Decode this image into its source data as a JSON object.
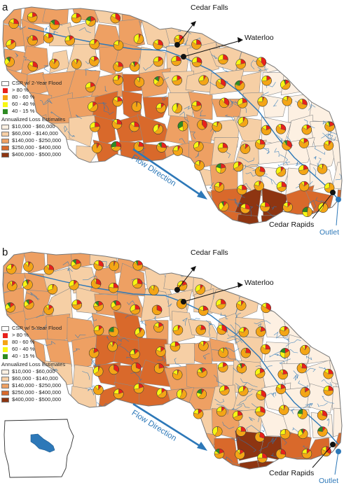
{
  "panels": [
    {
      "letter": "a",
      "csr_title": "CSR w/ 2-Year Flood",
      "csr_classes": [
        {
          "label": "> 80 %",
          "color": "#e8211b"
        },
        {
          "label": "80 - 60 %",
          "color": "#f4a516"
        },
        {
          "label": "60 - 40 %",
          "color": "#f7f712"
        },
        {
          "label": "40 - 15 %",
          "color": "#2e8b23"
        }
      ],
      "loss_title": "Annualized Loss Estimates",
      "loss_classes": [
        {
          "label": "$10,000 - $60,000",
          "color": "#fdf0e2"
        },
        {
          "label": "$60,000 - $140,000",
          "color": "#f6cfa5"
        },
        {
          "label": "$140,000 - $250,000",
          "color": "#eea063"
        },
        {
          "label": "$250,000 - $400,000",
          "color": "#d9692b"
        },
        {
          "label": "$400,000 - $500,000",
          "color": "#8e3511"
        }
      ],
      "cities": {
        "cedar_falls": "Cedar Falls",
        "waterloo": "Waterloo",
        "cedar_rapids": "Cedar Rapids"
      },
      "flow_direction": "Flow Direction",
      "outlet": "Outlet"
    },
    {
      "letter": "b",
      "csr_title": "CSR w/ 5-Year Flood",
      "csr_classes": [
        {
          "label": "> 80 %",
          "color": "#e8211b"
        },
        {
          "label": "80 - 60 %",
          "color": "#f4a516"
        },
        {
          "label": "60 - 40 %",
          "color": "#f7f712"
        },
        {
          "label": "40 - 15 %",
          "color": "#2e8b23"
        }
      ],
      "loss_title": "Annualized Loss Estimates",
      "loss_classes": [
        {
          "label": "$10,000 - $60,000",
          "color": "#fdf0e2"
        },
        {
          "label": "$60,000 - $140,000",
          "color": "#f6cfa5"
        },
        {
          "label": "$140,000 - $250,000",
          "color": "#eea063"
        },
        {
          "label": "$250,000 - $400,000",
          "color": "#d9692b"
        },
        {
          "label": "$400,000 - $500,000",
          "color": "#8e3511"
        }
      ],
      "cities": {
        "cedar_falls": "Cedar Falls",
        "waterloo": "Waterloo",
        "cedar_rapids": "Cedar Rapids"
      },
      "flow_direction": "Flow Direction",
      "outlet": "Outlet"
    }
  ],
  "colors": {
    "river": "#2d78b8",
    "boundary": "#8a8a8a",
    "inset_state": "#ffffff",
    "inset_basin": "#2d78b8"
  }
}
